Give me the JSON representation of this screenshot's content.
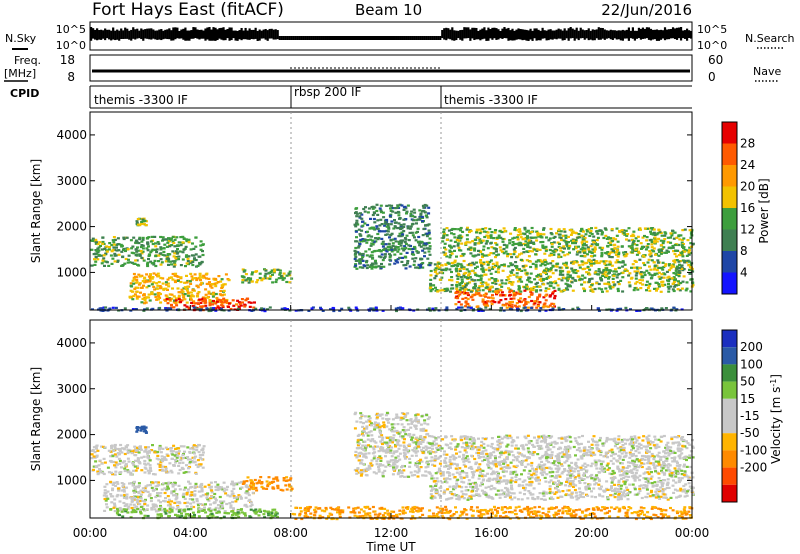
{
  "header": {
    "station": "Fort Hays East (fitACF)",
    "beam": "Beam 10",
    "date": "22/Jun/2016"
  },
  "noise_panel": {
    "left_label": "N.Sky",
    "right_label": "N.Search",
    "ticks": [
      "10^5",
      "10^0"
    ]
  },
  "freq_panel": {
    "left_label_line1": "Freq.",
    "left_label_line2": "[MHz]",
    "left_ticks": [
      "18",
      "8"
    ],
    "right_label": "Nave",
    "right_ticks": [
      "60",
      "0"
    ]
  },
  "cpid_panel": {
    "label": "CPID",
    "segments": [
      {
        "name": "themis -3300 IF",
        "start_hour": 0,
        "end_hour": 8
      },
      {
        "name": "rbsp 200 IF",
        "start_hour": 8,
        "end_hour": 14
      },
      {
        "name": "themis -3300 IF",
        "start_hour": 14,
        "end_hour": 24
      }
    ]
  },
  "x_axis": {
    "label": "Time UT",
    "ticks": [
      "00:00",
      "04:00",
      "08:00",
      "12:00",
      "16:00",
      "20:00",
      "00:00"
    ],
    "range_hours": [
      0,
      24
    ]
  },
  "colors": {
    "power_scale": [
      "#1414ff",
      "#1f46a6",
      "#3f7f52",
      "#3d9e3d",
      "#f2c200",
      "#ff9900",
      "#ff5a00",
      "#e60000"
    ],
    "velocity_scale": [
      "#1b2fbf",
      "#2a5aa6",
      "#3b8f3b",
      "#79c43b",
      "#c8c8c8",
      "#c8c8c8",
      "#ffb400",
      "#ff8a00",
      "#ff4a00",
      "#e00000"
    ],
    "ground_scatter": "#b4b4b4"
  },
  "chart_data": [
    {
      "type": "heatmap",
      "name": "power",
      "ylabel": "Slant Range [km]",
      "ylim": [
        180,
        4500
      ],
      "y_ticks": [
        "1000",
        "2000",
        "3000",
        "4000"
      ],
      "colorbar_label": "Power [dB]",
      "colorbar_ticks": [
        "4",
        "8",
        "12",
        "16",
        "20",
        "24",
        "28"
      ],
      "colorbar_range": [
        0,
        30
      ],
      "regions": [
        {
          "x_range": [
            0.0,
            4.5
          ],
          "y_range": [
            1150,
            1800
          ],
          "level_db": 12
        },
        {
          "x_range": [
            1.5,
            5.5
          ],
          "y_range": [
            350,
            1000
          ],
          "level_db": 18
        },
        {
          "x_range": [
            3.0,
            6.5
          ],
          "y_range": [
            200,
            450
          ],
          "level_db": 26
        },
        {
          "x_range": [
            6.0,
            8.0
          ],
          "y_range": [
            800,
            1100
          ],
          "level_db": 14
        },
        {
          "x_range": [
            1.8,
            2.2
          ],
          "y_range": [
            2050,
            2200
          ],
          "level_db": 14
        },
        {
          "x_range": [
            10.5,
            13.5
          ],
          "y_range": [
            1100,
            2500
          ],
          "level_db": 10
        },
        {
          "x_range": [
            14.0,
            24.0
          ],
          "y_range": [
            1350,
            2000
          ],
          "level_db": 14
        },
        {
          "x_range": [
            13.5,
            24.0
          ],
          "y_range": [
            600,
            1300
          ],
          "level_db": 14
        },
        {
          "x_range": [
            14.5,
            18.5
          ],
          "y_range": [
            250,
            650
          ],
          "level_db": 24
        },
        {
          "x_range": [
            0.0,
            24.0
          ],
          "y_range": [
            180,
            260
          ],
          "level_db": 6
        }
      ]
    },
    {
      "type": "heatmap",
      "name": "velocity",
      "ylabel": "Slant Range [km]",
      "ylim": [
        180,
        4500
      ],
      "y_ticks": [
        "1000",
        "2000",
        "3000",
        "4000"
      ],
      "colorbar_label": "Velocity [m s^-1]",
      "colorbar_ticks": [
        "200",
        "100",
        "50",
        "15",
        "-15",
        "-50",
        "-100",
        "-200"
      ],
      "colorbar_range": [
        -250,
        250
      ],
      "regions": [
        {
          "x_range": [
            0.0,
            4.5
          ],
          "y_range": [
            1150,
            1800
          ],
          "velocity": 0
        },
        {
          "x_range": [
            0.5,
            6.5
          ],
          "y_range": [
            350,
            1000
          ],
          "velocity": 0
        },
        {
          "x_range": [
            1.0,
            7.5
          ],
          "y_range": [
            200,
            400
          ],
          "velocity": 40
        },
        {
          "x_range": [
            6.0,
            8.0
          ],
          "y_range": [
            800,
            1100
          ],
          "velocity": -60
        },
        {
          "x_range": [
            1.8,
            2.2
          ],
          "y_range": [
            2050,
            2200
          ],
          "velocity": 120
        },
        {
          "x_range": [
            10.5,
            13.5
          ],
          "y_range": [
            1100,
            2500
          ],
          "velocity": 0
        },
        {
          "x_range": [
            13.5,
            24.0
          ],
          "y_range": [
            600,
            2000
          ],
          "velocity": 0
        },
        {
          "x_range": [
            8.0,
            24.0
          ],
          "y_range": [
            180,
            450
          ],
          "velocity": -50
        }
      ]
    }
  ]
}
